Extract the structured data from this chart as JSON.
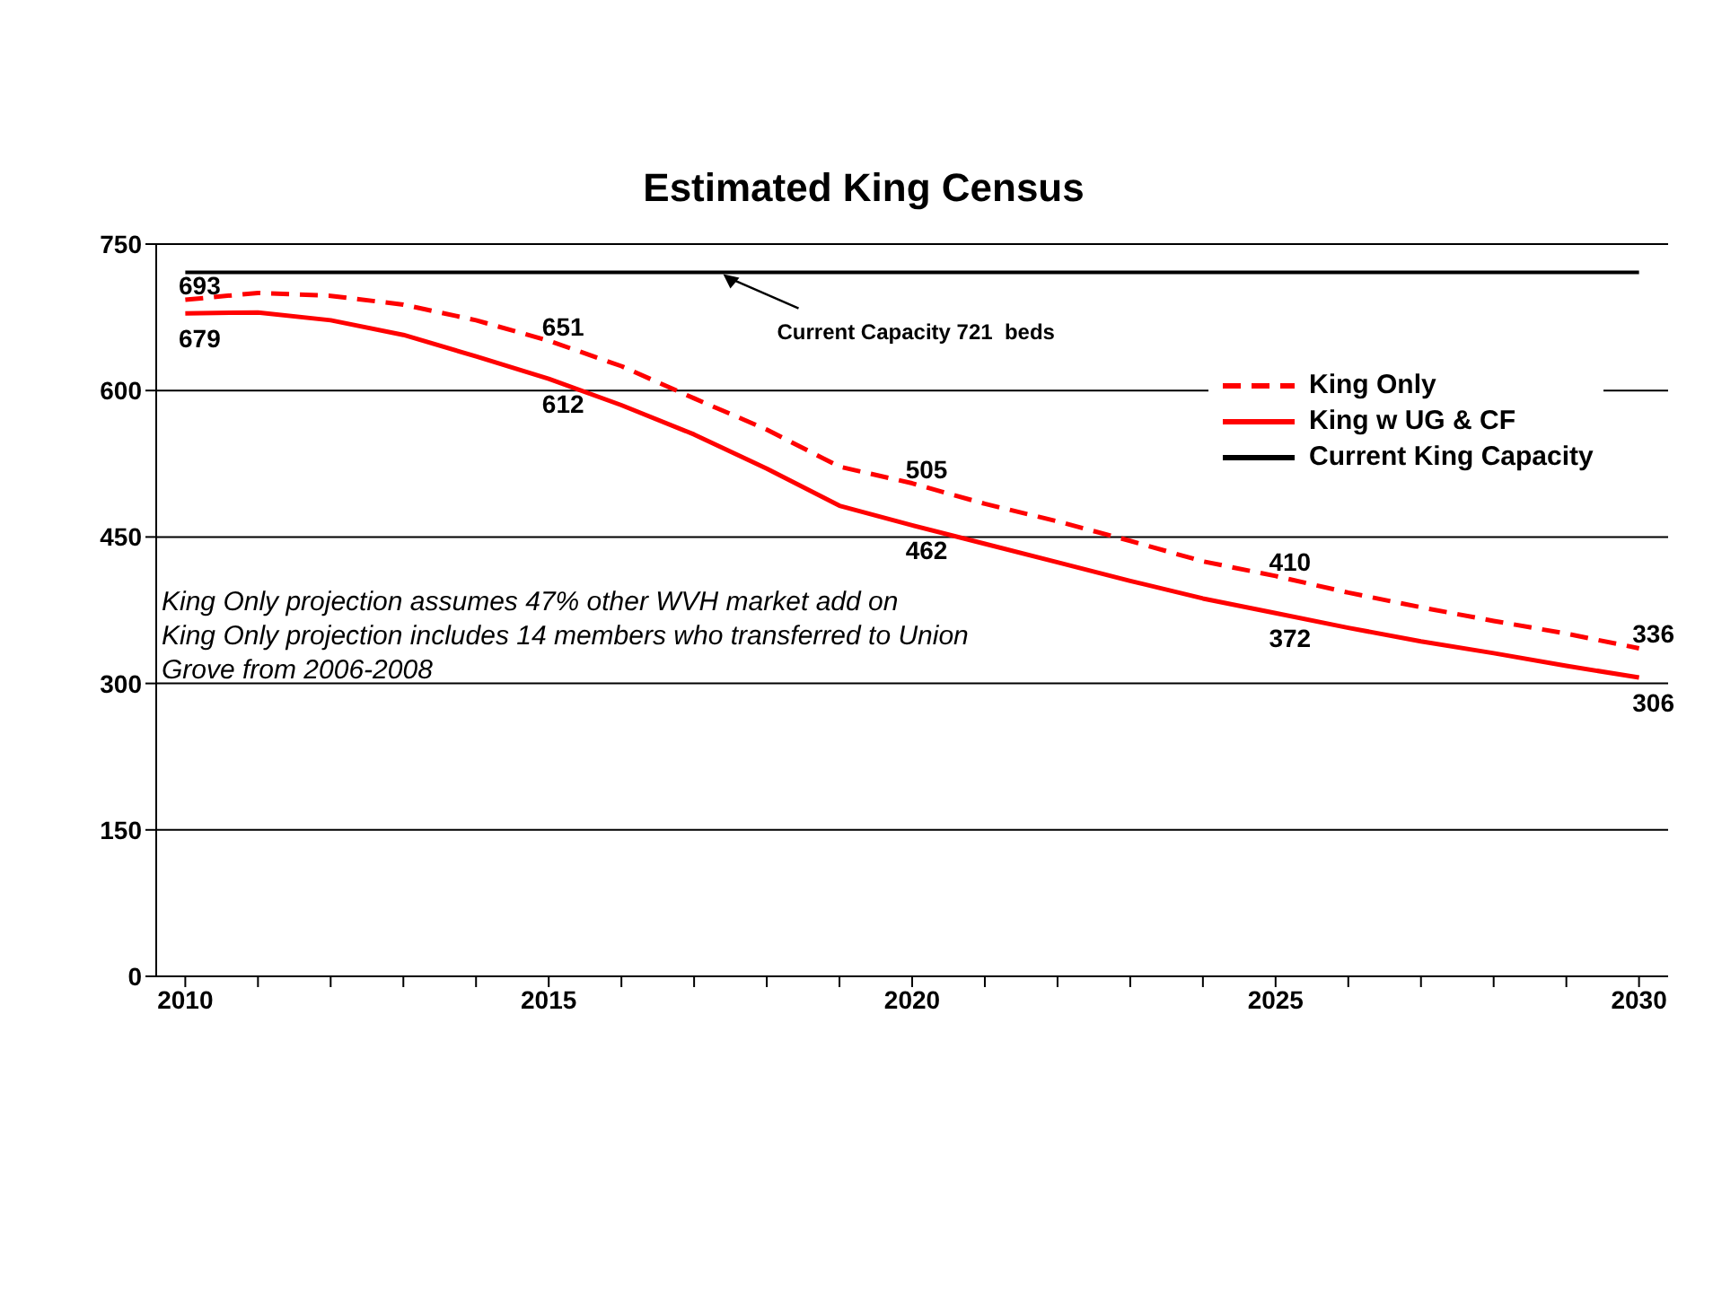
{
  "chart_data": {
    "type": "line",
    "title": "Estimated King Census",
    "x": [
      2010,
      2011,
      2012,
      2013,
      2014,
      2015,
      2016,
      2017,
      2018,
      2019,
      2020,
      2021,
      2022,
      2023,
      2024,
      2025,
      2026,
      2027,
      2028,
      2029,
      2030
    ],
    "series": [
      {
        "name": "King Only",
        "color": "#ff0000",
        "line_style": "dashed",
        "values": [
          693,
          700,
          697,
          688,
          672,
          651,
          625,
          592,
          560,
          522,
          505,
          484,
          466,
          446,
          425,
          410,
          393,
          378,
          364,
          351,
          336
        ],
        "value_labels": [
          "693",
          null,
          null,
          null,
          null,
          "651",
          null,
          null,
          null,
          null,
          "505",
          null,
          null,
          null,
          null,
          "410",
          null,
          null,
          null,
          null,
          "336"
        ]
      },
      {
        "name": "King w UG & CF",
        "color": "#ff0000",
        "line_style": "solid",
        "values": [
          679,
          680,
          672,
          657,
          635,
          612,
          585,
          555,
          520,
          482,
          462,
          443,
          424,
          405,
          387,
          372,
          357,
          343,
          331,
          318,
          306
        ],
        "value_labels": [
          "679",
          null,
          null,
          null,
          null,
          "612",
          null,
          null,
          null,
          null,
          "462",
          null,
          null,
          null,
          null,
          "372",
          null,
          null,
          null,
          null,
          "306"
        ]
      },
      {
        "name": "Current King Capacity",
        "color": "#000000",
        "line_style": "solid",
        "values": [
          721,
          721,
          721,
          721,
          721,
          721,
          721,
          721,
          721,
          721,
          721,
          721,
          721,
          721,
          721,
          721,
          721,
          721,
          721,
          721,
          721
        ]
      }
    ],
    "xlim": [
      2009.6,
      2030.4
    ],
    "xticks": [
      2010,
      {
        "value": 2011,
        "label": null
      },
      {
        "value": 2012,
        "label": null
      },
      {
        "value": 2013,
        "label": null
      },
      {
        "value": 2014,
        "label": null
      },
      2015,
      {
        "value": 2016,
        "label": null
      },
      {
        "value": 2017,
        "label": null
      },
      {
        "value": 2018,
        "label": null
      },
      {
        "value": 2019,
        "label": null
      },
      2020,
      {
        "value": 2021,
        "label": null
      },
      {
        "value": 2022,
        "label": null
      },
      {
        "value": 2023,
        "label": null
      },
      {
        "value": 2024,
        "label": null
      },
      2025,
      {
        "value": 2026,
        "label": null
      },
      {
        "value": 2027,
        "label": null
      },
      {
        "value": 2028,
        "label": null
      },
      {
        "value": 2029,
        "label": null
      },
      2030
    ],
    "ylim": [
      0,
      750
    ],
    "yticks": [
      0,
      150,
      300,
      450,
      600,
      750
    ],
    "grid": "y",
    "legend": "top right",
    "marker": "none",
    "annotations": [
      {
        "text": "Current Capacity 721  beds",
        "x": 2017.4,
        "y": 721
      },
      "King Only projection assumes 47% other WVH market add on",
      "King Only projection includes 14 members who transferred to Union Grove from 2006-2008"
    ]
  }
}
